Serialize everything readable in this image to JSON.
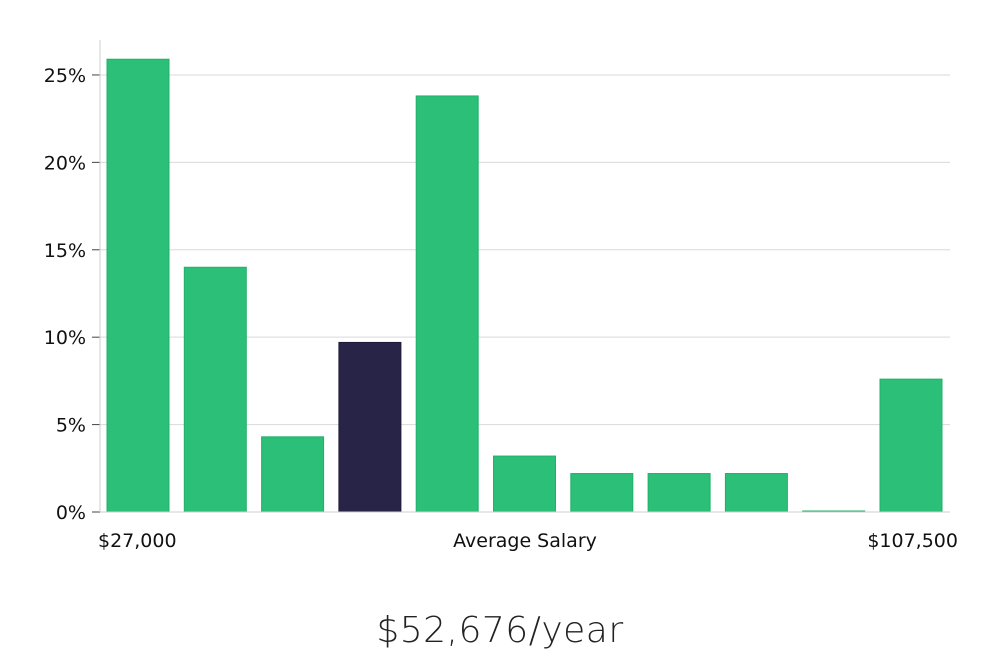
{
  "chart_data": {
    "type": "bar",
    "categories": [
      "1",
      "2",
      "3",
      "4",
      "5",
      "6",
      "7",
      "8",
      "9",
      "10",
      "11"
    ],
    "values": [
      25.9,
      14.0,
      4.3,
      9.7,
      23.8,
      3.2,
      2.2,
      2.2,
      2.2,
      0.05,
      7.6
    ],
    "highlight_index": 3,
    "ylim": [
      0,
      27
    ],
    "yticks": [
      0,
      5,
      10,
      15,
      20,
      25
    ],
    "ytick_labels": [
      "0%",
      "5%",
      "10%",
      "15%",
      "20%",
      "25%"
    ],
    "x_min_label": "$27,000",
    "x_center_label": "Average Salary",
    "x_max_label": "$107,500",
    "grid": true,
    "colors": {
      "bar": "#2bbf78",
      "bar_stroke": "#22b06b",
      "highlight": "#272447",
      "grid": "#d9d9d9",
      "axis": "#cfcfcf"
    }
  },
  "summary": {
    "average_salary": "$52,676/year"
  }
}
